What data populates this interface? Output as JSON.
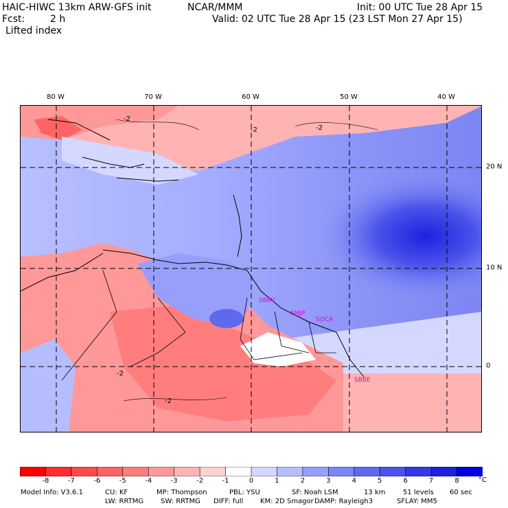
{
  "header": {
    "model": "HAIC-HIWC 13km ARW-GFS init",
    "org": "NCAR/MMM",
    "init": "Init: 00 UTC Tue 28 Apr 15",
    "fcst_label": "Fcst:",
    "fcst_value": "2 h",
    "valid": "Valid: 02 UTC Tue 28 Apr 15 (23 LST Mon 27 Apr 15)",
    "field": "Lifted index"
  },
  "map": {
    "lon_labels": [
      "80 W",
      "70 W",
      "60 W",
      "50 W",
      "40 W"
    ],
    "lat_labels": [
      "20 N",
      "10 N",
      "0"
    ],
    "contour_label": "-2",
    "sites": [
      "SBBV",
      "SMJP",
      "SOCA",
      "SBBE"
    ]
  },
  "colorbar": {
    "labels": [
      "-8",
      "-7",
      "-6",
      "-5",
      "-4",
      "-3",
      "-2",
      "-1",
      "0",
      "1",
      "2",
      "3",
      "4",
      "5",
      "6",
      "7",
      "8"
    ],
    "unit": "°C",
    "colors": [
      "#ff0000",
      "#ff2d2d",
      "#ff4a4a",
      "#ff6464",
      "#ff7d7d",
      "#ff9898",
      "#ffb3b3",
      "#ffd0d0",
      "#ffffff",
      "#d4d8ff",
      "#b6bdff",
      "#979ffb",
      "#7c85f4",
      "#5f69ee",
      "#4a53ea",
      "#3238e6",
      "#1d22e0",
      "#0000e0"
    ]
  },
  "model_info": {
    "line1": [
      "Model Info: V3.6.1",
      "CU: KF",
      "MP: Thompson",
      "PBL: YSU",
      "SF: Noah LSM",
      "13 km",
      "51 levels",
      "60 sec"
    ],
    "line2": [
      "LW: RRTMG",
      "SW: RRTMG",
      "DIFF: full",
      "KM: 2D Smagor",
      "DAMP: Rayleigh3",
      "SFLAY: MM5"
    ]
  }
}
